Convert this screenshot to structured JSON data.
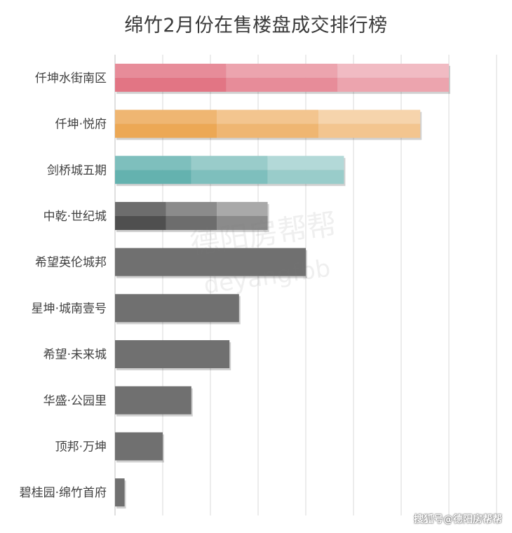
{
  "chart_data": {
    "type": "bar",
    "orientation": "horizontal",
    "title": "绵竹2月份在售楼盘成交排行榜",
    "categories": [
      "仟坤水街南区",
      "仟坤·悦府",
      "剑桥城五期",
      "中乾·世纪城",
      "希望英伦城邦",
      "星坤·城南壹号",
      "希望·未来城",
      "华盛·公园里",
      "顶邦·万坤",
      "碧桂园·绵竹首府"
    ],
    "values": [
      70,
      64,
      48,
      32,
      40,
      26,
      24,
      16,
      10,
      2
    ],
    "xlim": [
      0,
      80
    ],
    "grid": true,
    "colors": [
      "#e06c7c",
      "#eba24a",
      "#5aadaa",
      "#444444",
      "#707070",
      "#707070",
      "#707070",
      "#707070",
      "#707070",
      "#707070"
    ]
  },
  "watermark": {
    "text": "德阳房帮帮",
    "subtext": "deyangfbb"
  },
  "source": "搜狐号@德阳房帮帮"
}
